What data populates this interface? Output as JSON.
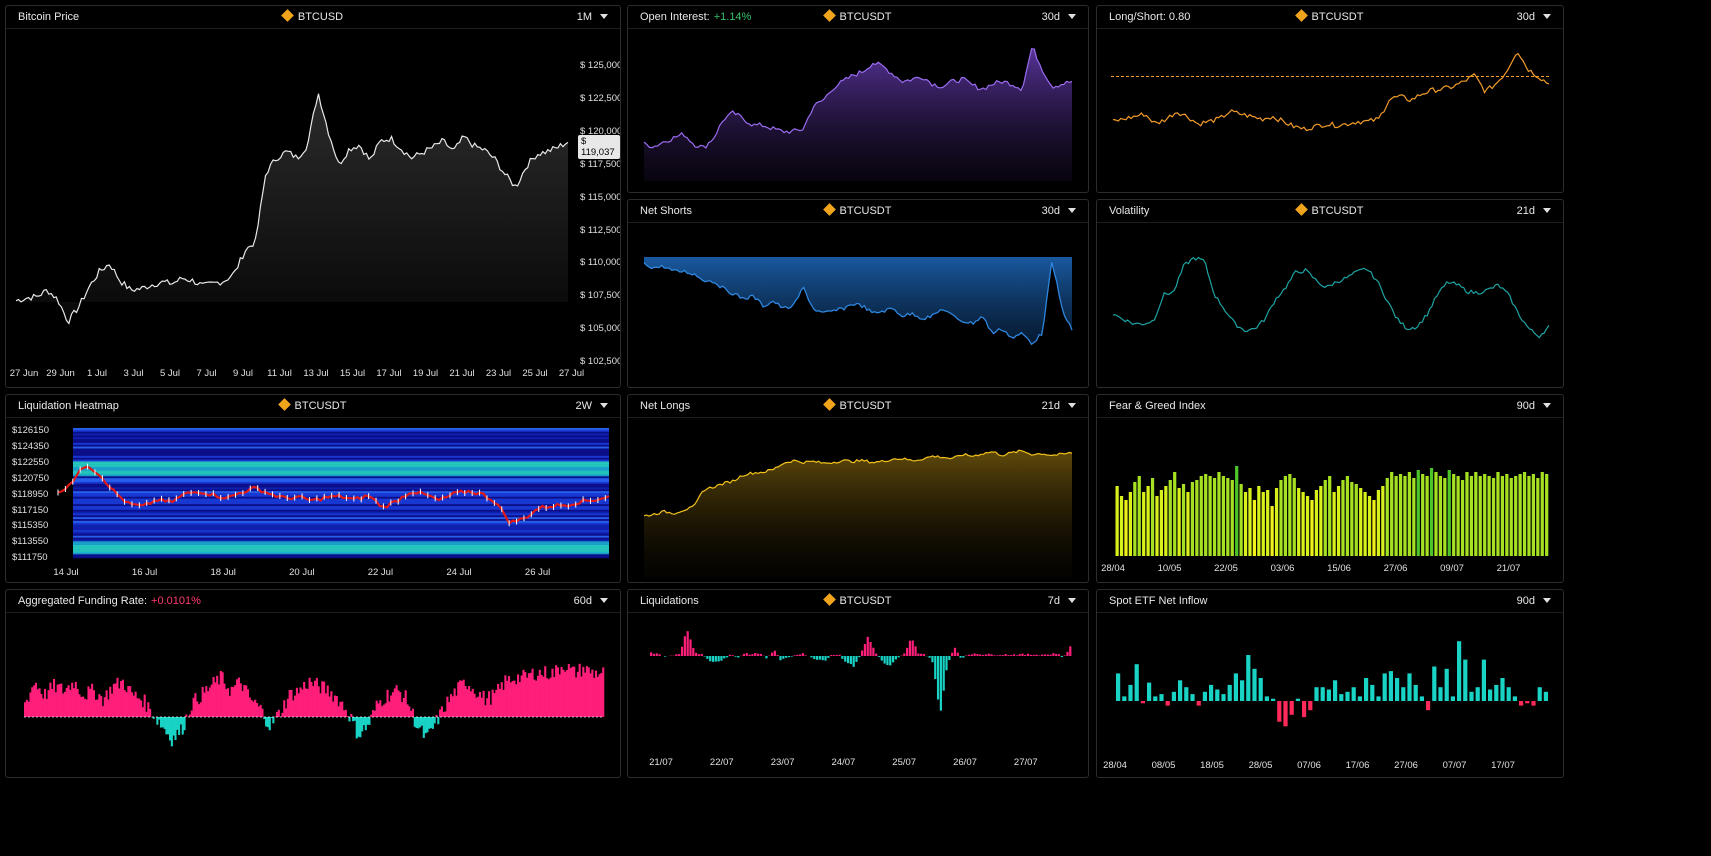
{
  "panels": {
    "btc_price": {
      "title": "Bitcoin Price",
      "symbol": "BTCUSD",
      "period": "1M",
      "last_price": "$ 119,037",
      "y_ticks": [
        "$ 125,000",
        "$ 122,500",
        "$ 120,000",
        "$ 117,500",
        "$ 115,000",
        "$ 112,500",
        "$ 110,000",
        "$ 107,500",
        "$ 105,000",
        "$ 102,500"
      ],
      "x_ticks": [
        "27 Jun",
        "29 Jun",
        "1 Jul",
        "3 Jul",
        "5 Jul",
        "7 Jul",
        "9 Jul",
        "11 Jul",
        "13 Jul",
        "15 Jul",
        "17 Jul",
        "19 Jul",
        "21 Jul",
        "23 Jul",
        "25 Jul",
        "27 Jul"
      ]
    },
    "open_interest": {
      "title": "Open Interest:",
      "change": "+1.14%",
      "symbol": "BTCUSDT",
      "period": "30d"
    },
    "long_short": {
      "title": "Long/Short: 0.80",
      "symbol": "BTCUSDT",
      "period": "30d"
    },
    "net_shorts": {
      "title": "Net Shorts",
      "symbol": "BTCUSDT",
      "period": "30d"
    },
    "volatility": {
      "title": "Volatility",
      "symbol": "BTCUSDT",
      "period": "21d"
    },
    "liq_heatmap": {
      "title": "Liquidation Heatmap",
      "symbol": "BTCUSDT",
      "period": "2W",
      "y_ticks": [
        "$126150",
        "$124350",
        "$122550",
        "$120750",
        "$118950",
        "$117150",
        "$115350",
        "$113550",
        "$111750"
      ],
      "x_ticks": [
        "14 Jul",
        "16 Jul",
        "18 Jul",
        "20 Jul",
        "22 Jul",
        "24 Jul",
        "26 Jul"
      ]
    },
    "net_longs": {
      "title": "Net Longs",
      "symbol": "BTCUSDT",
      "period": "21d"
    },
    "fear_greed": {
      "title": "Fear & Greed Index",
      "period": "90d",
      "x_ticks": [
        "28/04",
        "10/05",
        "22/05",
        "03/06",
        "15/06",
        "27/06",
        "09/07",
        "21/07"
      ]
    },
    "funding": {
      "title": "Aggregated Funding Rate:",
      "change": "+0.0101%",
      "period": "60d"
    },
    "liquidations": {
      "title": "Liquidations",
      "symbol": "BTCUSDT",
      "period": "7d",
      "x_ticks": [
        "21/07",
        "22/07",
        "23/07",
        "24/07",
        "25/07",
        "26/07",
        "27/07"
      ]
    },
    "etf": {
      "title": "Spot ETF Net Inflow",
      "period": "90d",
      "x_ticks": [
        "28/04",
        "08/05",
        "18/05",
        "28/05",
        "07/06",
        "17/06",
        "27/06",
        "07/07",
        "17/07"
      ]
    }
  },
  "colors": {
    "price": "#e8e8e8",
    "oi": "#9b6cf0",
    "ls": "#f39c2a",
    "shorts": "#2e86de",
    "vol": "#1ea3a3",
    "longs": "#f2c21b",
    "positive": "#ff1f7a",
    "negative": "#19d3c5",
    "ls_ref_line": "#f39c2a"
  },
  "icons": {
    "coin": "bitcoin-coin-icon",
    "dropdown": "chevron-down-icon"
  },
  "chart_data": [
    {
      "type": "line",
      "title": "Bitcoin Price",
      "series": [
        {
          "name": "BTCUSD",
          "values": [
            107000,
            107200,
            107300,
            107800,
            107100,
            105400,
            106500,
            108000,
            109200,
            109800,
            108500,
            107800,
            107900,
            108200,
            108400,
            108300,
            108700,
            108500,
            108100,
            108300,
            108500,
            109100,
            110800,
            111500,
            116700,
            117800,
            118300,
            117800,
            118800,
            122800,
            119800,
            117300,
            118500,
            118800,
            117600,
            119100,
            119300,
            118500,
            117800,
            118200,
            118600,
            119100,
            118300,
            119400,
            118700,
            118400,
            117700,
            116500,
            115600,
            117200,
            118100,
            118300,
            118600,
            119037
          ]
        }
      ],
      "x_labels": [
        "27 Jun",
        "29 Jun",
        "1 Jul",
        "3 Jul",
        "5 Jul",
        "7 Jul",
        "9 Jul",
        "11 Jul",
        "13 Jul",
        "15 Jul",
        "17 Jul",
        "19 Jul",
        "21 Jul",
        "23 Jul",
        "25 Jul",
        "27 Jul"
      ],
      "ylim": [
        102500,
        125000
      ]
    },
    {
      "type": "area",
      "title": "Open Interest",
      "values": [
        0.2,
        0.18,
        0.22,
        0.25,
        0.28,
        0.2,
        0.17,
        0.25,
        0.4,
        0.45,
        0.4,
        0.35,
        0.35,
        0.32,
        0.3,
        0.3,
        0.32,
        0.5,
        0.55,
        0.65,
        0.7,
        0.75,
        0.78,
        0.85,
        0.82,
        0.76,
        0.7,
        0.72,
        0.74,
        0.68,
        0.66,
        0.7,
        0.72,
        0.67,
        0.64,
        0.68,
        0.7,
        0.68,
        0.64,
        0.98,
        0.8,
        0.66,
        0.68,
        0.7
      ]
    },
    {
      "type": "line",
      "title": "Long/Short",
      "values": [
        0.38,
        0.4,
        0.42,
        0.44,
        0.36,
        0.4,
        0.46,
        0.42,
        0.36,
        0.38,
        0.4,
        0.46,
        0.44,
        0.42,
        0.4,
        0.42,
        0.38,
        0.34,
        0.32,
        0.34,
        0.36,
        0.35,
        0.36,
        0.38,
        0.38,
        0.4,
        0.56,
        0.58,
        0.55,
        0.6,
        0.63,
        0.64,
        0.66,
        0.7,
        0.75,
        0.62,
        0.68,
        0.78,
        0.95,
        0.8,
        0.74,
        0.68
      ],
      "reference": 0.74
    },
    {
      "type": "area",
      "title": "Net Shorts",
      "values": [
        0.04,
        0.07,
        0.06,
        0.1,
        0.1,
        0.12,
        0.17,
        0.18,
        0.24,
        0.28,
        0.32,
        0.3,
        0.38,
        0.34,
        0.4,
        0.38,
        0.23,
        0.4,
        0.44,
        0.42,
        0.4,
        0.36,
        0.38,
        0.44,
        0.42,
        0.4,
        0.46,
        0.44,
        0.48,
        0.46,
        0.4,
        0.46,
        0.5,
        0.52,
        0.46,
        0.6,
        0.56,
        0.64,
        0.6,
        0.68,
        0.6,
        0.02,
        0.4,
        0.58
      ]
    },
    {
      "type": "line",
      "title": "Volatility",
      "values": [
        0.35,
        0.3,
        0.25,
        0.25,
        0.28,
        0.55,
        0.58,
        0.85,
        0.93,
        0.9,
        0.55,
        0.4,
        0.25,
        0.18,
        0.2,
        0.3,
        0.5,
        0.62,
        0.78,
        0.8,
        0.7,
        0.62,
        0.68,
        0.72,
        0.78,
        0.82,
        0.7,
        0.5,
        0.3,
        0.2,
        0.22,
        0.35,
        0.55,
        0.68,
        0.65,
        0.58,
        0.57,
        0.6,
        0.65,
        0.55,
        0.35,
        0.2,
        0.12,
        0.22
      ]
    },
    {
      "type": "heatmap",
      "title": "Liquidation Heatmap",
      "price_series": [
        119300,
        120800,
        122800,
        121500,
        119500,
        118100,
        117800,
        118600,
        118300,
        119300,
        119600,
        119200,
        118800,
        119500,
        120000,
        119300,
        118800,
        118900,
        118500,
        118900,
        119000,
        118600,
        119100,
        117700,
        118500,
        119600,
        119200,
        118500,
        119300,
        119600,
        119300,
        118300,
        115900,
        116400,
        117600,
        117900,
        118000,
        118400,
        118600,
        119000
      ],
      "ylim": [
        111750,
        127050
      ]
    },
    {
      "type": "area",
      "title": "Net Longs",
      "values": [
        0.25,
        0.27,
        0.3,
        0.28,
        0.32,
        0.35,
        0.55,
        0.58,
        0.62,
        0.65,
        0.72,
        0.74,
        0.75,
        0.78,
        0.85,
        0.88,
        0.86,
        0.87,
        0.85,
        0.86,
        0.88,
        0.87,
        0.88,
        0.86,
        0.87,
        0.9,
        0.9,
        0.88,
        0.9,
        0.93,
        0.92,
        0.9,
        0.95,
        0.93,
        0.96,
        0.98,
        0.94,
        0.97,
        0.99,
        0.95,
        0.96,
        0.94,
        0.95,
        0.97
      ]
    },
    {
      "type": "bar",
      "title": "Fear & Greed Index",
      "values": [
        75,
        70,
        68,
        72,
        77,
        80,
        72,
        75,
        79,
        70,
        73,
        75,
        78,
        82,
        74,
        76,
        72,
        77,
        78,
        80,
        81,
        80,
        79,
        82,
        80,
        79,
        78,
        85,
        76,
        72,
        74,
        68,
        75,
        72,
        73,
        65,
        74,
        78,
        80,
        81,
        79,
        74,
        72,
        70,
        68,
        73,
        75,
        78,
        80,
        72,
        75,
        78,
        80,
        77,
        76,
        74,
        72,
        70,
        68,
        73,
        75,
        79,
        82,
        80,
        81,
        80,
        82,
        79,
        83,
        81,
        80,
        84,
        82,
        80,
        79,
        83,
        81,
        80,
        78,
        82,
        80,
        82,
        80,
        81,
        80,
        79,
        82,
        80,
        81,
        79,
        80,
        81,
        82,
        80,
        81,
        79,
        82,
        81
      ]
    },
    {
      "type": "area",
      "title": "Aggregated Funding Rate",
      "values": [
        0.3,
        0.8,
        0.5,
        0.7,
        0.6,
        0.8,
        0.5,
        0.6,
        0.4,
        0.7,
        0.8,
        0.5,
        0.4,
        0.1,
        -0.2,
        -0.5,
        -0.3,
        0.3,
        0.5,
        0.7,
        0.9,
        0.6,
        0.8,
        0.4,
        0.2,
        -0.2,
        0.1,
        0.5,
        0.6,
        0.8,
        0.7,
        0.6,
        0.4,
        0.1,
        -0.4,
        -0.2,
        0.3,
        0.5,
        0.6,
        0.4,
        -0.2,
        -0.5,
        -0.1,
        0.3,
        0.6,
        0.8,
        0.6,
        0.4,
        0.5,
        0.8,
        0.9,
        0.9,
        1.0,
        1.0,
        1.0,
        1.2,
        1.0,
        1.1,
        1.0,
        1.0
      ]
    },
    {
      "type": "bar",
      "title": "Liquidations",
      "values": [
        0.1,
        0.05,
        -0.05,
        0.02,
        0.1,
        0.9,
        0.15,
        0.05,
        -0.15,
        -0.2,
        -0.1,
        0.05,
        -0.05,
        0.1,
        0.05,
        0.1,
        -0.08,
        0.2,
        -0.15,
        -0.05,
        0.05,
        0.1,
        -0.05,
        -0.1,
        -0.15,
        0.05,
        0.05,
        -0.2,
        -0.35,
        0.05,
        0.65,
        0.15,
        -0.2,
        -0.35,
        -0.1,
        0.05,
        0.6,
        0.1,
        0.05,
        -0.2,
        -2.0,
        -0.25,
        0.3,
        -0.1,
        0.05,
        0.1,
        0.05,
        0.05,
        0.05,
        0.05,
        0.05,
        0.05,
        0.05,
        0.05,
        0.05,
        0.05,
        0.1,
        -0.05,
        0.3
      ]
    },
    {
      "type": "bar",
      "title": "Spot ETF Net Inflow",
      "values": [
        0.6,
        0.1,
        0.35,
        0.8,
        -0.05,
        0.4,
        0.1,
        0.15,
        -0.1,
        0.2,
        0.45,
        0.3,
        0.15,
        -0.1,
        0.2,
        0.35,
        0.25,
        0.15,
        0.35,
        0.6,
        0.45,
        1.0,
        0.7,
        0.5,
        0.1,
        0.05,
        -0.45,
        -0.55,
        -0.3,
        0.05,
        -0.35,
        -0.2,
        0.3,
        0.3,
        0.25,
        0.45,
        0.15,
        0.2,
        0.3,
        0.1,
        0.5,
        0.35,
        0.1,
        0.6,
        0.65,
        0.5,
        0.3,
        0.6,
        0.35,
        0.1,
        -0.2,
        0.75,
        0.3,
        0.7,
        0.1,
        1.3,
        0.9,
        0.2,
        0.3,
        0.9,
        0.25,
        0.35,
        0.5,
        0.3,
        0.1,
        -0.1,
        -0.05,
        -0.1,
        0.3,
        0.2
      ]
    }
  ]
}
